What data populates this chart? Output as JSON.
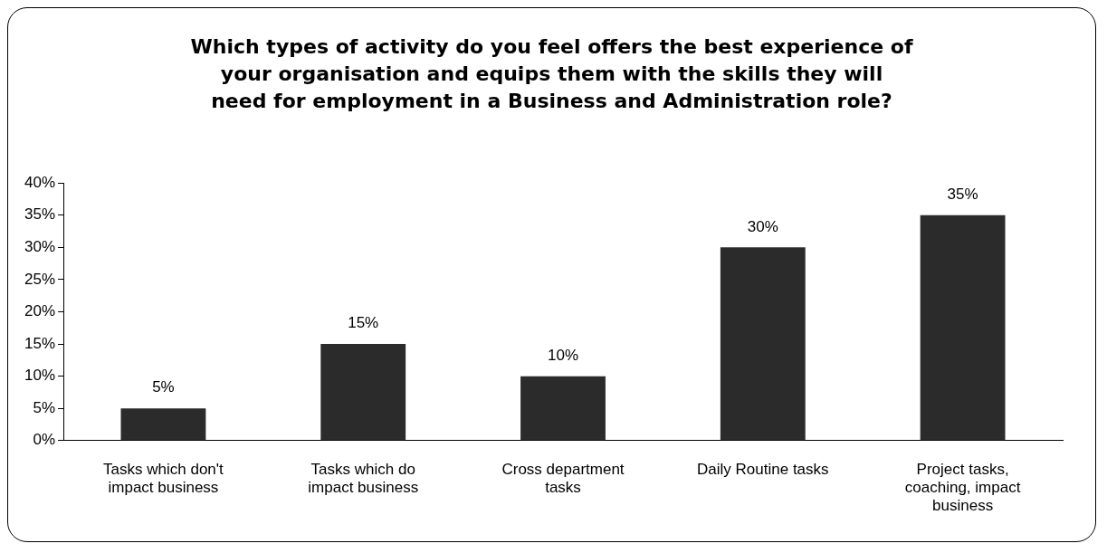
{
  "chart_data": {
    "type": "bar",
    "title": "Which types of activity do you feel offers the best experience of your organisation and equips them with the skills they will need for employment in a Business and Administration role?",
    "categories": [
      "Tasks which don't impact business",
      "Tasks which do impact business",
      "Cross department tasks",
      "Daily Routine tasks",
      "Project tasks, coaching, impact business"
    ],
    "values": [
      5,
      15,
      10,
      30,
      35
    ],
    "value_labels": [
      "5%",
      "15%",
      "10%",
      "30%",
      "35%"
    ],
    "color": "#2b2b2b",
    "ylim": [
      0,
      40
    ],
    "yticks": [
      {
        "value": 0,
        "label": "0%"
      },
      {
        "value": 5,
        "label": "5%"
      },
      {
        "value": 10,
        "label": "10%"
      },
      {
        "value": 15,
        "label": "15%"
      },
      {
        "value": 20,
        "label": "20%"
      },
      {
        "value": 25,
        "label": "25%"
      },
      {
        "value": 30,
        "label": "30%"
      },
      {
        "value": 35,
        "label": "35%"
      },
      {
        "value": 40,
        "label": "40%"
      }
    ],
    "grid": false,
    "legend": false
  }
}
